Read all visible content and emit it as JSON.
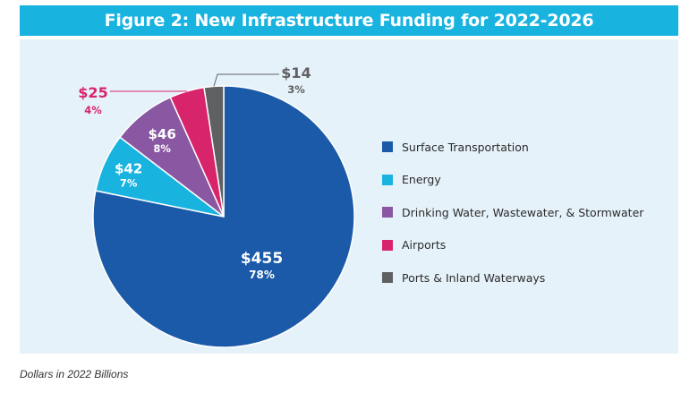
{
  "title": "Figure 2: New Infrastructure Funding for 2022-2026",
  "footnote": "Dollars in 2022 Billions",
  "colors": {
    "title_bar": "#19b3e0",
    "panel": "#e6f2f9"
  },
  "chart_data": {
    "type": "pie",
    "title": "Figure 2: New Infrastructure Funding for 2022-2026",
    "unit": "Dollars in 2022 Billions",
    "legend_placement": "right",
    "slices": [
      {
        "label": "Surface Transportation",
        "value": 455,
        "value_label": "$455",
        "percent": 78,
        "percent_label": "78%",
        "color": "#1b5aa8"
      },
      {
        "label": "Energy",
        "value": 42,
        "value_label": "$42",
        "percent": 7,
        "percent_label": "7%",
        "color": "#19b3e0"
      },
      {
        "label": "Drinking Water, Wastewater, & Stormwater",
        "value": 46,
        "value_label": "$46",
        "percent": 8,
        "percent_label": "8%",
        "color": "#8a57a2"
      },
      {
        "label": "Airports",
        "value": 25,
        "value_label": "$25",
        "percent": 4,
        "percent_label": "4%",
        "color": "#d8246b"
      },
      {
        "label": "Ports & Inland Waterways",
        "value": 14,
        "value_label": "$14",
        "percent": 3,
        "percent_label": "3%",
        "color": "#5f6062"
      }
    ]
  }
}
